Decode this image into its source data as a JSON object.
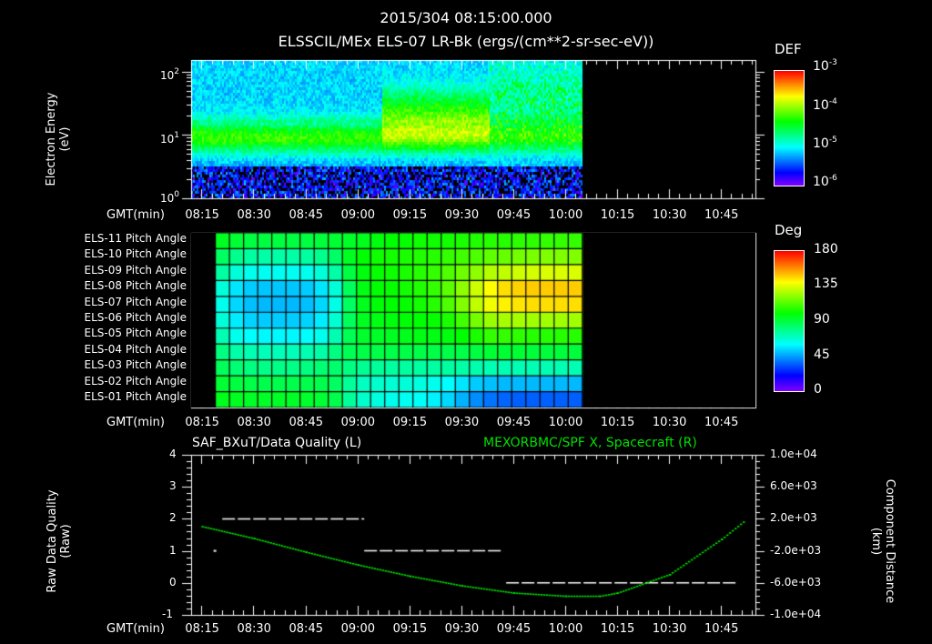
{
  "header": {
    "timestamp": "2015/304 08:15:00.000",
    "subtitle": "ELSSCIL/MEx ELS-07 LR-Bk  (ergs/(cm**2-sr-sec-eV))"
  },
  "time_axis": {
    "label": "GMT(min)",
    "ticks": [
      "08:15",
      "08:30",
      "08:45",
      "09:00",
      "09:15",
      "09:30",
      "09:45",
      "10:00",
      "10:15",
      "10:30",
      "10:45"
    ]
  },
  "panel1": {
    "ylabel_line1": "Electron Energy",
    "ylabel_line2": "(eV)",
    "yticks": [
      {
        "base": "10",
        "exp": "2"
      },
      {
        "base": "10",
        "exp": "1"
      },
      {
        "base": "10",
        "exp": "0"
      }
    ],
    "colorbar": {
      "title": "DEF",
      "labels": [
        {
          "base": "10",
          "exp": "-3"
        },
        {
          "base": "10",
          "exp": "-4"
        },
        {
          "base": "10",
          "exp": "-5"
        },
        {
          "base": "10",
          "exp": "-6"
        }
      ]
    }
  },
  "panel2": {
    "rows": [
      "ELS-11 Pitch Angle",
      "ELS-10 Pitch Angle",
      "ELS-09 Pitch Angle",
      "ELS-08 Pitch Angle",
      "ELS-07 Pitch Angle",
      "ELS-06 Pitch Angle",
      "ELS-05 Pitch Angle",
      "ELS-04 Pitch Angle",
      "ELS-03 Pitch Angle",
      "ELS-02 Pitch Angle",
      "ELS-01 Pitch Angle"
    ],
    "colorbar": {
      "title": "Deg",
      "labels": [
        "180",
        "135",
        "90",
        "45",
        "0"
      ]
    }
  },
  "panel3": {
    "left_title": "SAF_BXuT/Data Quality (L)",
    "right_title": "MEXORBMC/SPF X, Spacecraft (R)",
    "right_title_color": "#00e000",
    "ylabel_left_line1": "Raw Data Quality",
    "ylabel_left_line2": "(Raw)",
    "yticks_left": [
      "4",
      "3",
      "2",
      "1",
      "0",
      "-1"
    ],
    "yticks_right": [
      "1.0e+04",
      "6.0e+03",
      "2.0e+03",
      "-2.0e+03",
      "-6.0e+03",
      "-1.0e+04"
    ],
    "ylabel_right_line1": "Component Distance",
    "ylabel_right_line2": "(km)"
  },
  "chart_data": [
    {
      "type": "heatmap",
      "title": "ELSSCIL/MEx ELS-07 LR-Bk (ergs/(cm**2-sr-sec-eV))",
      "xlabel": "GMT(min)",
      "ylabel": "Electron Energy (eV)",
      "x_ticks": [
        "08:15",
        "08:30",
        "08:45",
        "09:00",
        "09:15",
        "09:30",
        "09:45",
        "10:00",
        "10:15",
        "10:30",
        "10:45"
      ],
      "y_scale": "log",
      "ylim": [
        1,
        150
      ],
      "data_time_range": [
        "08:15",
        "10:05"
      ],
      "colorbar": {
        "label": "DEF",
        "scale": "log",
        "range": [
          1e-06,
          0.001
        ]
      },
      "features": [
        {
          "time_range": [
            "08:15",
            "09:07"
          ],
          "energy_range_eV": [
            5,
            20
          ],
          "level": "~1e-5 (cyan-green band)"
        },
        {
          "time_range": [
            "09:07",
            "09:35"
          ],
          "energy_range_eV": [
            10,
            100
          ],
          "level": "~1e-4 (green-yellow enhancement)"
        },
        {
          "time_range": [
            "09:35",
            "10:05"
          ],
          "energy_range_eV": [
            5,
            150
          ],
          "level": "variable bursts ~5e-5"
        }
      ]
    },
    {
      "type": "heatmap",
      "title": "ELS Pitch Angle",
      "xlabel": "GMT(min)",
      "rows": [
        "ELS-11",
        "ELS-10",
        "ELS-09",
        "ELS-08",
        "ELS-07",
        "ELS-06",
        "ELS-05",
        "ELS-04",
        "ELS-03",
        "ELS-02",
        "ELS-01"
      ],
      "colorbar": {
        "label": "Deg",
        "range": [
          0,
          180
        ],
        "ticks": [
          0,
          45,
          90,
          135,
          180
        ]
      },
      "data_time_range": [
        "08:19",
        "10:05"
      ],
      "columns": 26,
      "values": [
        [
          95,
          92,
          90,
          90,
          90,
          90,
          90,
          91,
          92,
          94,
          96,
          98,
          100,
          101,
          102,
          102,
          103,
          104,
          105,
          106,
          106,
          107,
          107,
          108,
          108,
          108
        ],
        [
          85,
          78,
          75,
          74,
          74,
          74,
          75,
          78,
          84,
          95,
          100,
          102,
          103,
          104,
          105,
          106,
          108,
          110,
          112,
          115,
          116,
          118,
          119,
          120,
          120,
          120
        ],
        [
          75,
          66,
          63,
          62,
          62,
          62,
          63,
          66,
          74,
          90,
          98,
          101,
          102,
          104,
          106,
          108,
          112,
          117,
          122,
          128,
          130,
          132,
          133,
          134,
          134,
          134
        ],
        [
          66,
          56,
          52,
          51,
          51,
          51,
          52,
          56,
          66,
          86,
          97,
          100,
          101,
          103,
          105,
          108,
          114,
          122,
          132,
          140,
          145,
          147,
          148,
          148,
          148,
          148
        ],
        [
          63,
          54,
          50,
          49,
          49,
          49,
          50,
          54,
          64,
          85,
          96,
          99,
          100,
          101,
          103,
          106,
          112,
          120,
          130,
          138,
          142,
          144,
          145,
          145,
          145,
          145
        ],
        [
          66,
          57,
          53,
          52,
          52,
          52,
          53,
          57,
          67,
          86,
          95,
          97,
          98,
          99,
          100,
          101,
          104,
          110,
          118,
          124,
          126,
          126,
          125,
          125,
          125,
          125
        ],
        [
          72,
          63,
          60,
          59,
          59,
          59,
          60,
          63,
          72,
          87,
          93,
          94,
          95,
          96,
          97,
          97,
          98,
          100,
          104,
          108,
          108,
          107,
          106,
          106,
          106,
          106
        ],
        [
          80,
          74,
          72,
          71,
          71,
          71,
          72,
          74,
          80,
          87,
          89,
          89,
          89,
          89,
          89,
          89,
          89,
          89,
          90,
          92,
          92,
          92,
          91,
          91,
          91,
          91
        ],
        [
          86,
          82,
          80,
          79,
          79,
          79,
          80,
          82,
          83,
          80,
          77,
          76,
          75,
          75,
          75,
          75,
          75,
          74,
          73,
          72,
          72,
          72,
          72,
          72,
          72,
          72
        ],
        [
          92,
          90,
          89,
          88,
          88,
          88,
          88,
          88,
          85,
          76,
          70,
          68,
          67,
          66,
          65,
          63,
          60,
          56,
          52,
          50,
          49,
          49,
          49,
          49,
          49,
          49
        ],
        [
          96,
          95,
          94,
          94,
          94,
          94,
          93,
          92,
          88,
          76,
          68,
          65,
          63,
          62,
          61,
          58,
          54,
          48,
          42,
          38,
          36,
          35,
          35,
          35,
          35,
          35
        ]
      ]
    },
    {
      "type": "line",
      "title_left": "SAF_BXuT/Data Quality (L)",
      "title_right": "MEXORBMC/SPF X, Spacecraft (R)",
      "xlabel": "GMT(min)",
      "x_ticks": [
        "08:15",
        "08:30",
        "08:45",
        "09:00",
        "09:15",
        "09:30",
        "09:45",
        "10:00",
        "10:15",
        "10:30",
        "10:45"
      ],
      "ylim_left": [
        -1,
        4
      ],
      "ylim_right": [
        -10000,
        10000
      ],
      "series": [
        {
          "name": "Raw Data Quality",
          "axis": "left",
          "color": "#ffffff",
          "style": "dashed-steps",
          "points": [
            {
              "t": "08:19",
              "v": 1
            },
            {
              "t": "08:21",
              "v": 2
            },
            {
              "t": "09:02",
              "v": 2
            },
            {
              "t": "09:02",
              "v": 1
            },
            {
              "t": "09:42",
              "v": 1
            },
            {
              "t": "09:43",
              "v": 0
            },
            {
              "t": "10:50",
              "v": 0
            }
          ]
        },
        {
          "name": "SPF X Spacecraft (km)",
          "axis": "right",
          "color": "#00e000",
          "points": [
            {
              "t": "08:15",
              "v": 1000
            },
            {
              "t": "08:30",
              "v": -500
            },
            {
              "t": "08:45",
              "v": -2200
            },
            {
              "t": "09:00",
              "v": -3800
            },
            {
              "t": "09:15",
              "v": -5200
            },
            {
              "t": "09:30",
              "v": -6400
            },
            {
              "t": "09:45",
              "v": -7300
            },
            {
              "t": "10:00",
              "v": -7700
            },
            {
              "t": "10:10",
              "v": -7700
            },
            {
              "t": "10:15",
              "v": -7300
            },
            {
              "t": "10:30",
              "v": -5000
            },
            {
              "t": "10:45",
              "v": -600
            },
            {
              "t": "10:52",
              "v": 1800
            }
          ]
        }
      ]
    }
  ]
}
